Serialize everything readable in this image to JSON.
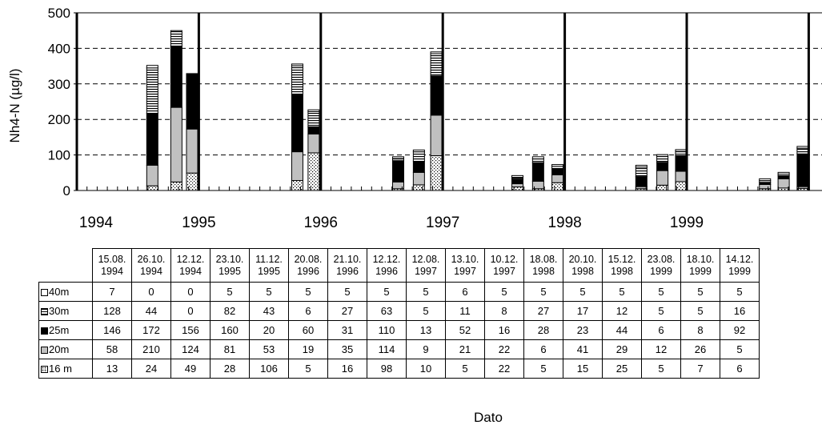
{
  "chart_data": {
    "type": "bar",
    "stacked": true,
    "ylabel": "Nh4-N (µg/l)",
    "xlabel": "Dato",
    "ylim": [
      0,
      500
    ],
    "yticks": [
      0,
      100,
      200,
      300,
      400,
      500
    ],
    "grid": "horizontal dashed",
    "legend": "table-below",
    "year_ticks": [
      "1994",
      "1995",
      "1996",
      "1997",
      "1998",
      "1999"
    ],
    "categories": [
      "15.08.\n1994",
      "26.10.\n1994",
      "12.12.\n1994",
      "23.10.\n1995",
      "11.12.\n1995",
      "20.08.\n1996",
      "21.10.\n1996",
      "12.12.\n1996",
      "12.08.\n1997",
      "13.10.\n1997",
      "10.12.\n1997",
      "18.08.\n1998",
      "20.10.\n1998",
      "15.12.\n1998",
      "23.08.\n1999",
      "18.10.\n1999",
      "14.12.\n1999"
    ],
    "dates": [
      "1994-08-15",
      "1994-10-26",
      "1994-12-12",
      "1995-10-23",
      "1995-12-11",
      "1996-08-20",
      "1996-10-21",
      "1996-12-12",
      "1997-08-12",
      "1997-10-13",
      "1997-12-10",
      "1998-08-18",
      "1998-10-20",
      "1998-12-15",
      "1999-08-23",
      "1999-10-18",
      "1999-12-14"
    ],
    "series": [
      {
        "name": "16 m",
        "pattern": "dots",
        "values": [
          13,
          24,
          49,
          28,
          106,
          5,
          16,
          98,
          10,
          5,
          22,
          5,
          15,
          25,
          5,
          7,
          6
        ]
      },
      {
        "name": "20m",
        "pattern": "gray",
        "values": [
          58,
          210,
          124,
          81,
          53,
          19,
          35,
          114,
          9,
          21,
          22,
          6,
          41,
          29,
          12,
          26,
          5
        ]
      },
      {
        "name": "25m",
        "pattern": "black",
        "values": [
          146,
          172,
          156,
          160,
          20,
          60,
          31,
          110,
          13,
          52,
          16,
          28,
          23,
          44,
          6,
          8,
          92
        ]
      },
      {
        "name": "30m",
        "pattern": "hlines",
        "values": [
          128,
          44,
          0,
          82,
          43,
          6,
          27,
          63,
          5,
          11,
          8,
          27,
          17,
          12,
          5,
          5,
          16
        ]
      },
      {
        "name": "40m",
        "pattern": "white",
        "values": [
          7,
          0,
          0,
          5,
          5,
          5,
          5,
          5,
          5,
          6,
          5,
          5,
          5,
          5,
          5,
          5,
          5
        ]
      }
    ],
    "colors": {
      "black": "#000000",
      "gray": "#c0c0c0",
      "white": "#ffffff"
    }
  }
}
